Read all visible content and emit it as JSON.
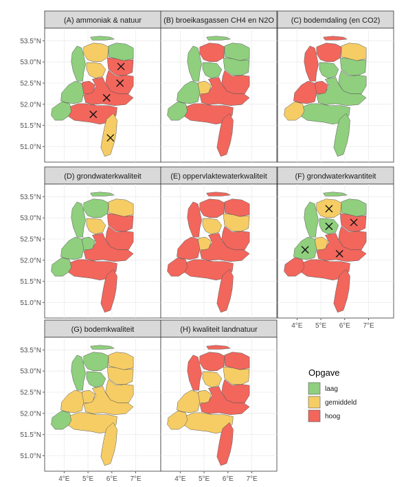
{
  "legend": {
    "title": "Opgave",
    "items": [
      {
        "label": "laag",
        "color": "#8fcf7e"
      },
      {
        "label": "gemiddeld",
        "color": "#f6cd65"
      },
      {
        "label": "hoog",
        "color": "#f2665c"
      }
    ]
  },
  "axes": {
    "lat_ticks": [
      "53.5°N",
      "53.0°N",
      "52.5°N",
      "52.0°N",
      "51.5°N",
      "51.0°N"
    ],
    "lon_ticks": [
      "4°E",
      "5°E",
      "6°E",
      "7°E"
    ]
  },
  "panels": [
    {
      "title": "(A) ammoniak & natuur",
      "regions": {
        "nw": "laag",
        "fr": "gemiddeld",
        "gr": "laag",
        "dr": "hoog",
        "nh": "laag",
        "fl": "gemiddeld",
        "ov": "hoog",
        "ut": "hoog",
        "zh": "laag",
        "ge": "hoog",
        "ze": "laag",
        "nb": "hoog",
        "li": "gemiddeld"
      },
      "crosses": [
        "ov",
        "dr",
        "ge",
        "nb",
        "li"
      ]
    },
    {
      "title": "(B) broeikasgassen CH4 en N2O",
      "regions": {
        "nw": "laag",
        "fr": "hoog",
        "gr": "laag",
        "dr": "laag",
        "nh": "laag",
        "fl": "laag",
        "ov": "hoog",
        "ut": "gemiddeld",
        "zh": "laag",
        "ge": "hoog",
        "ze": "laag",
        "nb": "hoog",
        "li": "hoog"
      },
      "crosses": []
    },
    {
      "title": "(C) bodemdaling (en CO2)",
      "regions": {
        "nw": "hoog",
        "fr": "hoog",
        "gr": "gemiddeld",
        "dr": "laag",
        "nh": "hoog",
        "fl": "laag",
        "ov": "laag",
        "ut": "hoog",
        "zh": "hoog",
        "ge": "laag",
        "ze": "gemiddeld",
        "nb": "laag",
        "li": "laag"
      },
      "crosses": []
    },
    {
      "title": "(D) grondwaterkwaliteit",
      "regions": {
        "nw": "laag",
        "fr": "laag",
        "gr": "gemiddeld",
        "dr": "hoog",
        "nh": "laag",
        "fl": "gemiddeld",
        "ov": "hoog",
        "ut": "laag",
        "zh": "laag",
        "ge": "hoog",
        "ze": "laag",
        "nb": "hoog",
        "li": "hoog"
      },
      "crosses": []
    },
    {
      "title": "(E) oppervlaktewaterkwaliteit",
      "regions": {
        "nw": "hoog",
        "fr": "hoog",
        "gr": "hoog",
        "dr": "gemiddeld",
        "nh": "hoog",
        "fl": "gemiddeld",
        "ov": "hoog",
        "ut": "gemiddeld",
        "zh": "hoog",
        "ge": "hoog",
        "ze": "hoog",
        "nb": "hoog",
        "li": "hoog"
      },
      "crosses": []
    },
    {
      "title": "(F) grondwaterkwantiteit",
      "regions": {
        "nw": "laag",
        "fr": "gemiddeld",
        "gr": "laag",
        "dr": "hoog",
        "nh": "laag",
        "fl": "laag",
        "ov": "hoog",
        "ut": "gemiddeld",
        "zh": "laag",
        "ge": "hoog",
        "ze": "hoog",
        "nb": "hoog",
        "li": "hoog"
      },
      "crosses": [
        "fr",
        "dr",
        "fl",
        "zh",
        "ge"
      ]
    },
    {
      "title": "(G) bodemkwaliteit",
      "regions": {
        "nw": "laag",
        "fr": "laag",
        "gr": "gemiddeld",
        "dr": "gemiddeld",
        "nh": "laag",
        "fl": "laag",
        "ov": "gemiddeld",
        "ut": "gemiddeld",
        "zh": "gemiddeld",
        "ge": "gemiddeld",
        "ze": "laag",
        "nb": "gemiddeld",
        "li": "gemiddeld"
      },
      "crosses": []
    },
    {
      "title": "(H) kwaliteit landnatuur",
      "regions": {
        "nw": "hoog",
        "fr": "hoog",
        "gr": "hoog",
        "dr": "gemiddeld",
        "nh": "hoog",
        "fl": "gemiddeld",
        "ov": "hoog",
        "ut": "gemiddeld",
        "zh": "gemiddeld",
        "ge": "hoog",
        "ze": "gemiddeld",
        "nb": "gemiddeld",
        "li": "hoog"
      },
      "crosses": []
    }
  ]
}
